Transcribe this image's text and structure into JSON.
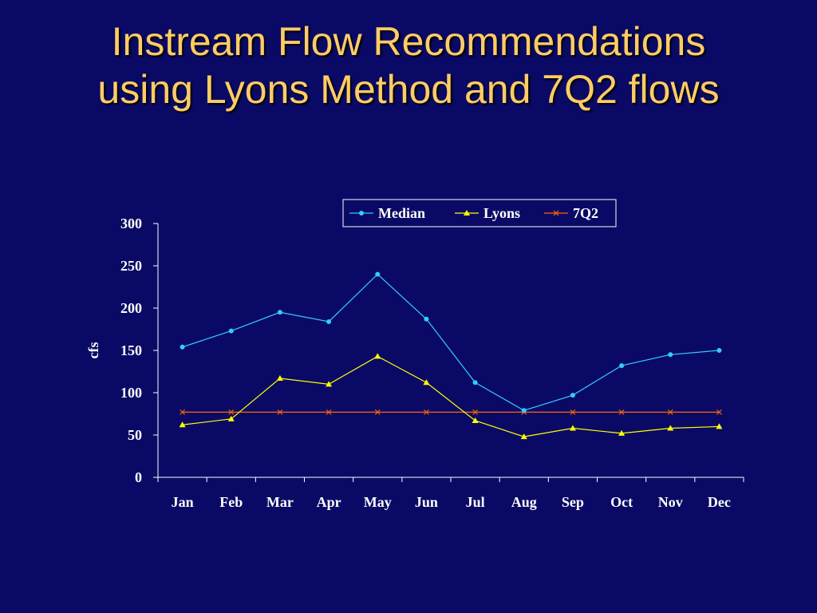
{
  "slide": {
    "title_line1": "Instream Flow Recommendations",
    "title_line2": "using Lyons Method and 7Q2 flows"
  },
  "chart_data": {
    "type": "line",
    "title": "",
    "xlabel": "",
    "ylabel": "cfs",
    "ylim": [
      0,
      300
    ],
    "yticks": [
      0,
      50,
      100,
      150,
      200,
      250,
      300
    ],
    "categories": [
      "Jan",
      "Feb",
      "Mar",
      "Apr",
      "May",
      "Jun",
      "Jul",
      "Aug",
      "Sep",
      "Oct",
      "Nov",
      "Dec"
    ],
    "legend_position": "top-right",
    "grid": false,
    "series": [
      {
        "name": "Median",
        "color": "#33ccff",
        "marker": "circle",
        "values": [
          154,
          173,
          195,
          184,
          240,
          187,
          112,
          79,
          97,
          132,
          145,
          150
        ]
      },
      {
        "name": "Lyons",
        "color": "#ffff00",
        "marker": "triangle",
        "values": [
          62,
          69,
          117,
          110,
          143,
          112,
          67,
          48,
          58,
          52,
          58,
          60
        ]
      },
      {
        "name": "7Q2",
        "color": "#ff6600",
        "marker": "x",
        "values": [
          77,
          77,
          77,
          77,
          77,
          77,
          77,
          77,
          77,
          77,
          77,
          77
        ]
      }
    ]
  }
}
